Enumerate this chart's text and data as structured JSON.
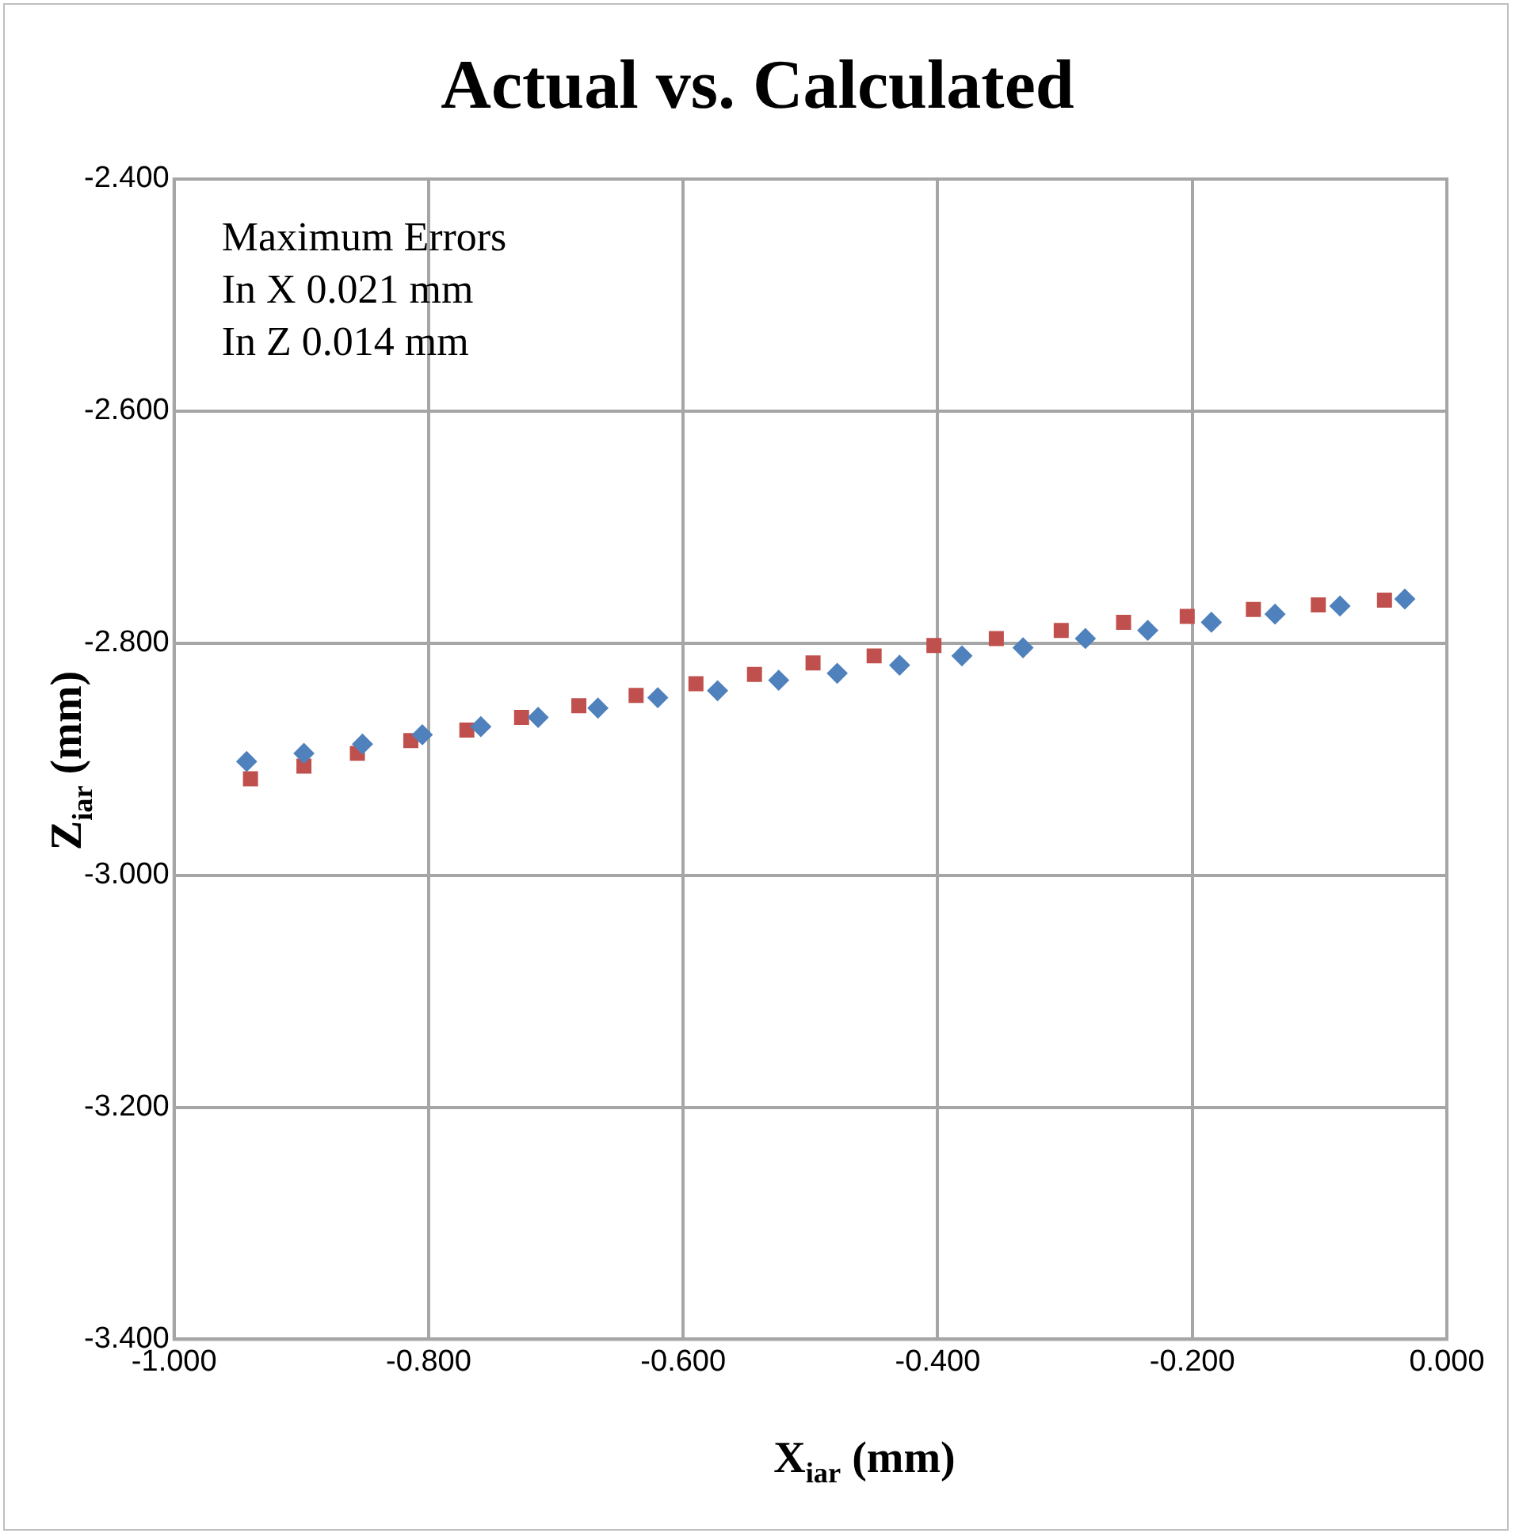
{
  "chart_data": {
    "type": "scatter",
    "title": "Actual vs. Calculated",
    "xlabel": "X$_{iar}$ (mm)",
    "ylabel": "Z$_{iar}$ (mm)",
    "annotations": [
      "Maximum Errors",
      "In X 0.021 mm",
      "In Z 0.014 mm"
    ],
    "xlim": [
      -1,
      0
    ],
    "ylim": [
      -3.4,
      -2.4
    ],
    "xticks": [
      {
        "value": -1,
        "label": "-1.000"
      },
      {
        "value": -0.8,
        "label": "-0.800"
      },
      {
        "value": -0.6,
        "label": "-0.600"
      },
      {
        "value": -0.4,
        "label": "-0.400"
      },
      {
        "value": -0.2,
        "label": "-0.200"
      },
      {
        "value": 0,
        "label": "0.000"
      }
    ],
    "yticks": [
      {
        "value": -3.4,
        "label": "-3.400"
      },
      {
        "value": -3.2,
        "label": "-3.200"
      },
      {
        "value": -3,
        "label": "-3.000"
      },
      {
        "value": -2.8,
        "label": "-2.800"
      },
      {
        "value": -2.6,
        "label": "-2.600"
      },
      {
        "value": -2.4,
        "label": "-2.400"
      }
    ],
    "grid": true,
    "legend": false,
    "series": [
      {
        "color": "#4f81bd",
        "marker": "diamond",
        "x": [
          -0.943,
          -0.898,
          -0.852,
          -0.805,
          -0.759,
          -0.714,
          -0.667,
          -0.62,
          -0.573,
          -0.525,
          -0.479,
          -0.43,
          -0.381,
          -0.333,
          -0.284,
          -0.235,
          -0.185,
          -0.135,
          -0.084,
          -0.033
        ],
        "values": [
          -2.902,
          -2.895,
          -2.887,
          -2.879,
          -2.872,
          -2.864,
          -2.856,
          -2.847,
          -2.841,
          -2.832,
          -2.826,
          -2.819,
          -2.811,
          -2.804,
          -2.796,
          -2.789,
          -2.782,
          -2.775,
          -2.768,
          -2.762
        ]
      },
      {
        "color": "#c0504d",
        "marker": "square",
        "x": [
          -0.94,
          -0.898,
          -0.856,
          -0.814,
          -0.77,
          -0.727,
          -0.682,
          -0.637,
          -0.59,
          -0.544,
          -0.498,
          -0.45,
          -0.403,
          -0.354,
          -0.303,
          -0.254,
          -0.204,
          -0.152,
          -0.101,
          -0.049
        ],
        "values": [
          -2.917,
          -2.906,
          -2.895,
          -2.884,
          -2.875,
          -2.864,
          -2.854,
          -2.845,
          -2.835,
          -2.827,
          -2.817,
          -2.811,
          -2.802,
          -2.796,
          -2.789,
          -2.782,
          -2.777,
          -2.771,
          -2.767,
          -2.763
        ]
      }
    ]
  }
}
